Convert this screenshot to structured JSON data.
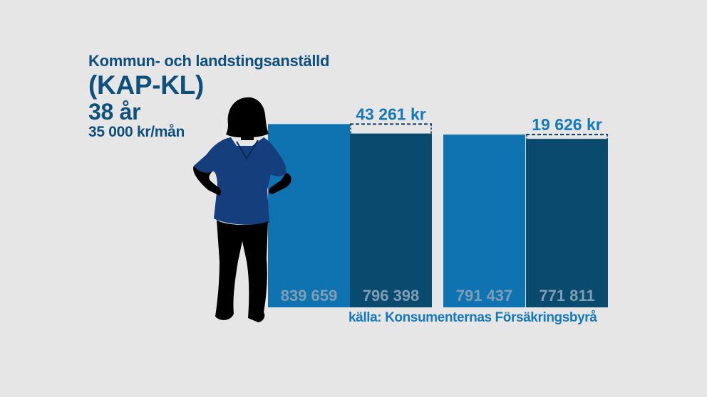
{
  "header": {
    "line1": "Kommun- och landstingsanställd",
    "line2": "(KAP-KL)",
    "line3": "38 år",
    "line4": "35 000 kr/mån"
  },
  "colors": {
    "title": "#0f4f7b",
    "bar_light": "#0e73b0",
    "bar_dark": "#0a4a6e",
    "bar_label": "#7f9db3",
    "difference_label": "#1679b8",
    "source": "#1679b8",
    "background": "#e6e6e6",
    "scrubs": "#143f7c",
    "silhouette": "#000000"
  },
  "chart_data": {
    "type": "bar",
    "title": "",
    "xlabel": "",
    "ylabel": "",
    "ylim": [
      0,
      880000
    ],
    "grid": false,
    "bars": [
      {
        "value": 839659,
        "label": "839 659",
        "shade": "light"
      },
      {
        "value": 796398,
        "label": "796 398",
        "shade": "dark"
      },
      {
        "value": 791437,
        "label": "791 437",
        "shade": "light"
      },
      {
        "value": 771811,
        "label": "771 811",
        "shade": "dark"
      }
    ],
    "differences": [
      {
        "value": 43261,
        "label": "43 261 kr"
      },
      {
        "value": 19626,
        "label": "19 626 kr"
      }
    ],
    "source": "källa: Konsumenternas Försäkringsbyrå"
  }
}
